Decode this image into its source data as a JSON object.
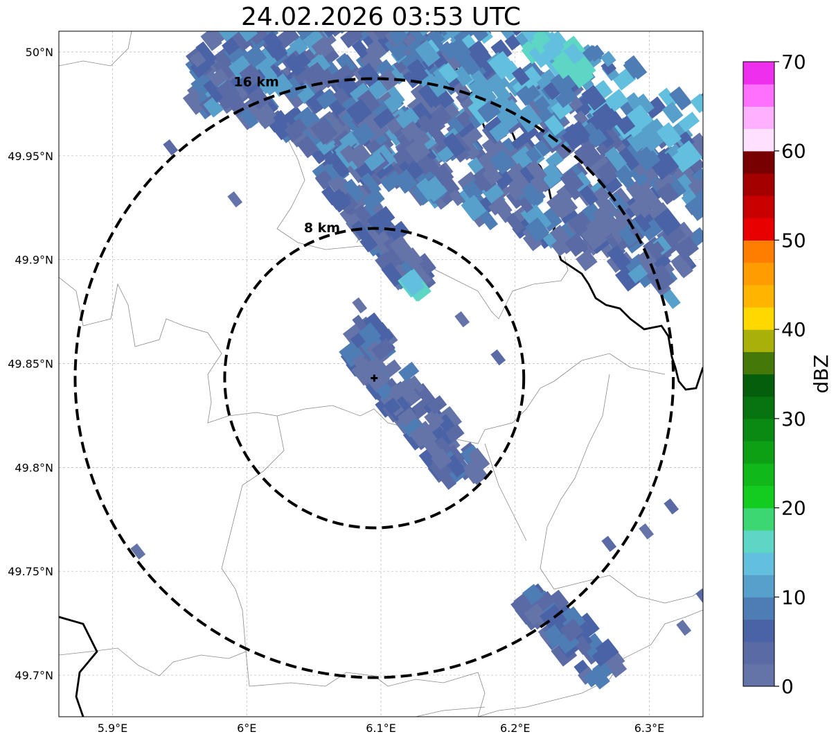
{
  "title": "24.02.2026 03:53 UTC",
  "map": {
    "lon_range": [
      5.86,
      6.34
    ],
    "lat_range": [
      49.68,
      50.01
    ],
    "gridlines": true,
    "lon_ticks": [
      {
        "value": 5.9,
        "label": "5.9°E"
      },
      {
        "value": 6.0,
        "label": "6°E"
      },
      {
        "value": 6.1,
        "label": "6.1°E"
      },
      {
        "value": 6.2,
        "label": "6.2°E"
      },
      {
        "value": 6.3,
        "label": "6.3°E"
      }
    ],
    "lat_ticks": [
      {
        "value": 50.0,
        "label": "50°N"
      },
      {
        "value": 49.95,
        "label": "49.95°N"
      },
      {
        "value": 49.9,
        "label": "49.9°N"
      },
      {
        "value": 49.85,
        "label": "49.85°N"
      },
      {
        "value": 49.8,
        "label": "49.8°N"
      },
      {
        "value": 49.75,
        "label": "49.75°N"
      },
      {
        "value": 49.7,
        "label": "49.7°N"
      }
    ],
    "radar_site": {
      "lon": 6.095,
      "lat": 49.843
    },
    "range_rings": [
      {
        "radius_km": 8,
        "label": "8 km"
      },
      {
        "radius_km": 16,
        "label": "16 km"
      }
    ]
  },
  "colorbar": {
    "label": "dBZ",
    "min": 0,
    "max": 70,
    "ticks": [
      "0",
      "10",
      "20",
      "30",
      "40",
      "50",
      "60",
      "70"
    ],
    "colors": [
      "#6474a8",
      "#5a6aa4",
      "#4a62a6",
      "#4e7cb4",
      "#58a0cc",
      "#62c0de",
      "#5ed6c6",
      "#3cd672",
      "#14cc20",
      "#10b81a",
      "#0ea014",
      "#0a8a12",
      "#087410",
      "#045e0c",
      "#447808",
      "#aab00a",
      "#ffd800",
      "#ffb400",
      "#ff9c00",
      "#ff7e00",
      "#e80000",
      "#c80000",
      "#a40000",
      "#780000",
      "#ffe0ff",
      "#ffb0ff",
      "#ff70ff",
      "#ee30ee"
    ]
  }
}
